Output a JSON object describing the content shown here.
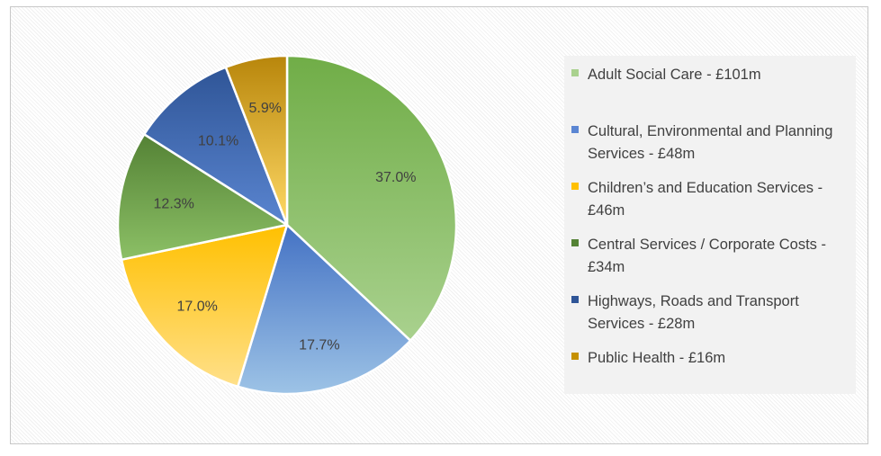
{
  "chart_data": {
    "type": "pie",
    "title": "",
    "start_angle": "12 o'clock, clockwise",
    "slices": [
      {
        "label": "Adult Social Care - £101m",
        "value": 37.0,
        "display": "37.0%",
        "color_top": "#70ad47",
        "color_bottom": "#a9d18e",
        "swatch": "#a9d18e"
      },
      {
        "label": "Cultural, Environmental and Planning Services - £48m",
        "value": 17.7,
        "display": "17.7%",
        "color_top": "#4472c4",
        "color_bottom": "#9dc3e6",
        "swatch": "#5b86d3"
      },
      {
        "label": "Children’s and Education Services - £46m",
        "value": 17.0,
        "display": "17.0%",
        "color_top": "#ffc000",
        "color_bottom": "#ffe08a",
        "swatch": "#ffc000"
      },
      {
        "label": "Central Services / Corporate Costs - £34m",
        "value": 12.3,
        "display": "12.3%",
        "color_top": "#548235",
        "color_bottom": "#8cc066",
        "swatch": "#548235"
      },
      {
        "label": "Highways, Roads and Transport Services - £28m",
        "value": 10.1,
        "display": "10.1%",
        "color_top": "#2f5597",
        "color_bottom": "#5a85d0",
        "swatch": "#2f5597"
      },
      {
        "label": "Public Health - £16m",
        "value": 5.9,
        "display": "5.9%",
        "color_top": "#b8860b",
        "color_bottom": "#ffd966",
        "swatch": "#c59000"
      }
    ],
    "legend": {
      "position": "right"
    }
  }
}
